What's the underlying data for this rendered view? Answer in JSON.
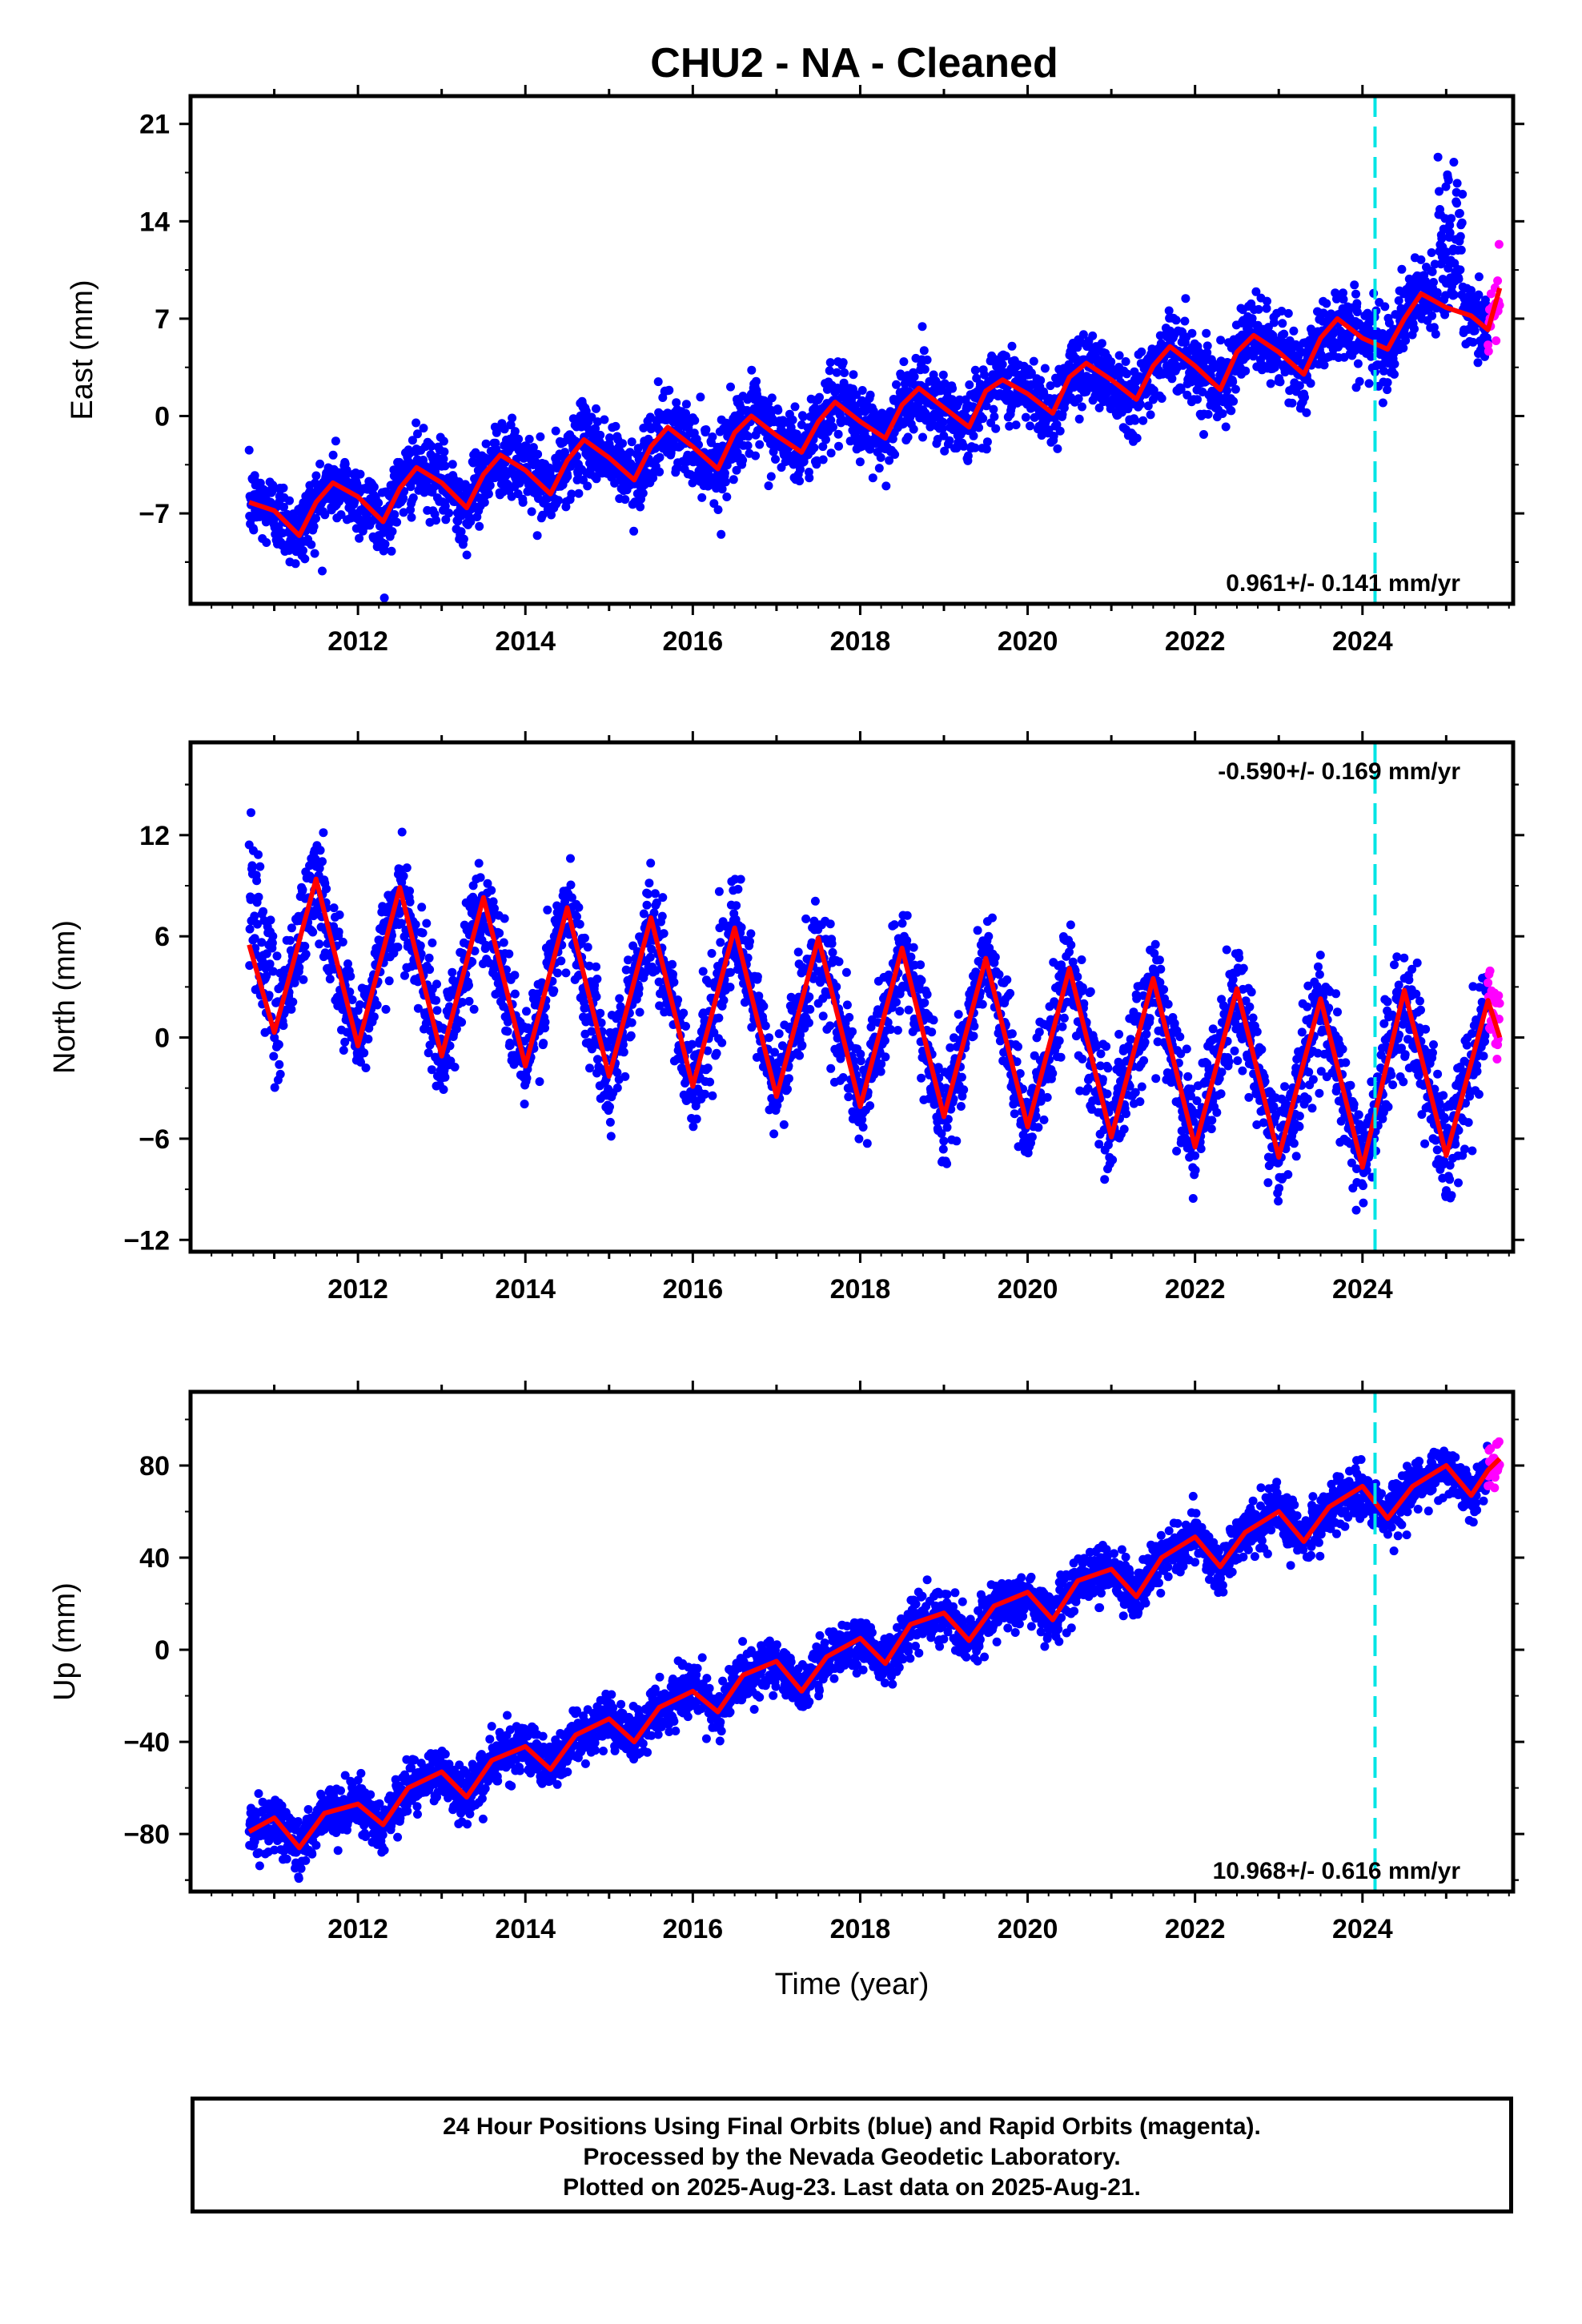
{
  "title": "CHU2  - NA - Cleaned",
  "colors": {
    "final_orbits": "#0000ff",
    "rapid_orbits": "#ff00ff",
    "model_fit": "#ff0000",
    "event_marker": "#00e5e5",
    "axes": "#000000"
  },
  "event_marker_year": 2024.15,
  "chart_data": [
    {
      "type": "scatter",
      "component": "East",
      "ylabel": "East (mm)",
      "xlabel": "",
      "xlim": [
        2010.0,
        2025.8
      ],
      "ylim": [
        -13.5,
        23
      ],
      "xticks": [
        2012,
        2014,
        2016,
        2018,
        2020,
        2022,
        2024
      ],
      "yticks": [
        -7,
        0,
        7,
        14,
        21
      ],
      "ytick_labels": [
        "−7",
        "0",
        "7",
        "14",
        "21"
      ],
      "rate_text": "0.961+/- 0.141 mm/yr",
      "rate_position": "bottom-right",
      "data_start": 2010.7,
      "final_end": 2025.5,
      "rapid_end": 2025.64,
      "series": [
        {
          "name": "Final Orbits (blue)",
          "kind": "points",
          "color": "#0000ff"
        },
        {
          "name": "Rapid Orbits (magenta)",
          "kind": "points",
          "color": "#ff00ff"
        },
        {
          "kind": "fit",
          "color": "#ff0000",
          "x": [
            2010.7,
            2011.0,
            2011.3,
            2011.5,
            2011.7,
            2012.0,
            2012.3,
            2012.5,
            2012.7,
            2013.0,
            2013.3,
            2013.5,
            2013.7,
            2014.0,
            2014.3,
            2014.5,
            2014.7,
            2015.0,
            2015.3,
            2015.5,
            2015.7,
            2016.0,
            2016.3,
            2016.5,
            2016.7,
            2017.0,
            2017.3,
            2017.5,
            2017.7,
            2018.0,
            2018.3,
            2018.5,
            2018.7,
            2019.0,
            2019.3,
            2019.5,
            2019.7,
            2020.0,
            2020.3,
            2020.5,
            2020.7,
            2021.0,
            2021.3,
            2021.5,
            2021.7,
            2022.0,
            2022.3,
            2022.5,
            2022.7,
            2023.0,
            2023.3,
            2023.5,
            2023.7,
            2024.0,
            2024.3,
            2024.5,
            2024.7,
            2025.0,
            2025.3,
            2025.5,
            2025.64
          ],
          "y": [
            -6.2,
            -6.8,
            -8.6,
            -6.2,
            -4.8,
            -5.8,
            -7.6,
            -5.2,
            -3.7,
            -4.8,
            -6.6,
            -4.2,
            -2.8,
            -3.9,
            -5.6,
            -3.2,
            -1.7,
            -3.0,
            -4.6,
            -2.2,
            -0.8,
            -2.2,
            -3.8,
            -1.2,
            0.0,
            -1.4,
            -2.6,
            -0.4,
            1.0,
            -0.4,
            -1.6,
            0.8,
            2.0,
            0.6,
            -0.8,
            1.8,
            2.6,
            1.6,
            0.2,
            2.8,
            3.8,
            2.6,
            1.2,
            3.6,
            5.0,
            3.6,
            1.9,
            4.6,
            5.8,
            4.6,
            3.0,
            5.6,
            7.0,
            5.6,
            4.8,
            7.0,
            8.8,
            7.8,
            7.2,
            6.2,
            9.2
          ]
        }
      ]
    },
    {
      "type": "scatter",
      "component": "North",
      "ylabel": "North (mm)",
      "xlabel": "",
      "xlim": [
        2010.0,
        2025.8
      ],
      "ylim": [
        -12.7,
        17.5
      ],
      "xticks": [
        2012,
        2014,
        2016,
        2018,
        2020,
        2022,
        2024
      ],
      "yticks": [
        -12,
        -6,
        0,
        6,
        12
      ],
      "ytick_labels": [
        "−12",
        "−6",
        "0",
        "6",
        "12"
      ],
      "rate_text": "-0.590+/- 0.169 mm/yr",
      "rate_position": "top-right",
      "data_start": 2010.7,
      "final_end": 2025.5,
      "rapid_end": 2025.64,
      "series": [
        {
          "name": "Final Orbits (blue)",
          "kind": "points",
          "color": "#0000ff"
        },
        {
          "name": "Rapid Orbits (magenta)",
          "kind": "points",
          "color": "#ff00ff"
        },
        {
          "kind": "fit",
          "color": "#ff0000",
          "x": [
            2010.7,
            2011.0,
            2011.5,
            2012.0,
            2012.5,
            2013.0,
            2013.5,
            2014.0,
            2014.5,
            2015.0,
            2015.5,
            2016.0,
            2016.5,
            2017.0,
            2017.5,
            2018.0,
            2018.5,
            2019.0,
            2019.5,
            2020.0,
            2020.5,
            2021.0,
            2021.5,
            2022.0,
            2022.5,
            2023.0,
            2023.5,
            2024.0,
            2024.5,
            2025.0,
            2025.5,
            2025.64
          ],
          "y": [
            5.5,
            0.3,
            9.4,
            -0.5,
            8.9,
            -1.1,
            8.3,
            -1.7,
            7.7,
            -2.3,
            7.1,
            -2.9,
            6.5,
            -3.5,
            5.9,
            -4.1,
            5.3,
            -4.7,
            4.7,
            -5.3,
            4.1,
            -5.9,
            3.5,
            -6.5,
            2.9,
            -7.1,
            2.3,
            -7.7,
            2.8,
            -7.0,
            2.2,
            0.0
          ]
        }
      ]
    },
    {
      "type": "scatter",
      "component": "Up",
      "ylabel": "Up (mm)",
      "xlabel": "Time (year)",
      "xlim": [
        2010.0,
        2025.8
      ],
      "ylim": [
        -105,
        112
      ],
      "xticks": [
        2012,
        2014,
        2016,
        2018,
        2020,
        2022,
        2024
      ],
      "yticks": [
        -80,
        -40,
        0,
        40,
        80
      ],
      "ytick_labels": [
        "−80",
        "−40",
        "0",
        "40",
        "80"
      ],
      "rate_text": "10.968+/- 0.616 mm/yr",
      "rate_position": "bottom-right",
      "data_start": 2010.7,
      "final_end": 2025.5,
      "rapid_end": 2025.64,
      "series": [
        {
          "name": "Final Orbits (blue)",
          "kind": "points",
          "color": "#0000ff"
        },
        {
          "name": "Rapid Orbits (magenta)",
          "kind": "points",
          "color": "#ff00ff"
        },
        {
          "kind": "fit",
          "color": "#ff0000",
          "x": [
            2010.7,
            2011.0,
            2011.3,
            2011.6,
            2012.0,
            2012.3,
            2012.6,
            2013.0,
            2013.3,
            2013.6,
            2014.0,
            2014.3,
            2014.6,
            2015.0,
            2015.3,
            2015.6,
            2016.0,
            2016.3,
            2016.6,
            2017.0,
            2017.3,
            2017.6,
            2018.0,
            2018.3,
            2018.6,
            2019.0,
            2019.3,
            2019.6,
            2020.0,
            2020.3,
            2020.6,
            2021.0,
            2021.3,
            2021.6,
            2022.0,
            2022.3,
            2022.6,
            2023.0,
            2023.3,
            2023.6,
            2024.0,
            2024.3,
            2024.6,
            2025.0,
            2025.3,
            2025.5,
            2025.64
          ],
          "y": [
            -79,
            -73,
            -86,
            -71,
            -67,
            -76,
            -60,
            -53,
            -64,
            -48,
            -42,
            -52,
            -37,
            -30,
            -40,
            -25,
            -18,
            -27,
            -11,
            -5,
            -18,
            -3,
            5,
            -6,
            11,
            16,
            4,
            19,
            25,
            13,
            30,
            35,
            23,
            40,
            49,
            36,
            51,
            60,
            47,
            62,
            71,
            57,
            71,
            80,
            67,
            78,
            83
          ]
        }
      ]
    }
  ],
  "caption": {
    "line1": "24 Hour Positions Using Final Orbits (blue) and Rapid Orbits (magenta).",
    "line2": "Processed by the Nevada Geodetic Laboratory.",
    "line3": "Plotted on 2025-Aug-23. Last data on 2025-Aug-21."
  }
}
